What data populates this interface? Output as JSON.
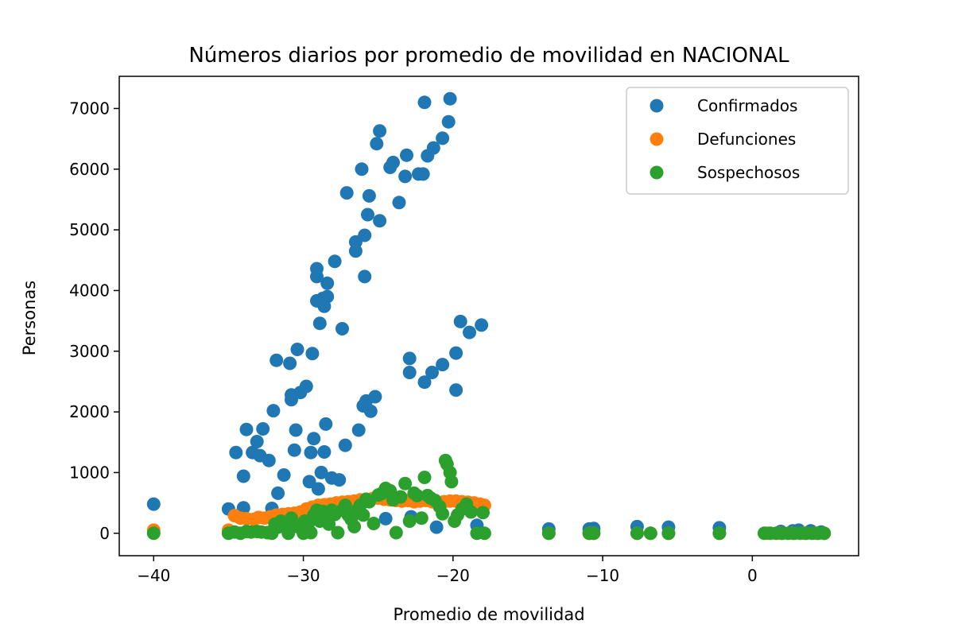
{
  "chart_data": {
    "type": "scatter",
    "title": "Números diarios por promedio de movilidad en NACIONAL",
    "xlabel": "Promedio de movilidad",
    "ylabel": "Personas",
    "xlim": [
      -42.3,
      7.1
    ],
    "ylim": [
      -370,
      7530
    ],
    "x_ticks": [
      -40,
      -30,
      -20,
      -10,
      0
    ],
    "x_tick_labels": [
      "−40",
      "−30",
      "−20",
      "−10",
      "0"
    ],
    "y_ticks": [
      0,
      1000,
      2000,
      3000,
      4000,
      5000,
      6000,
      7000
    ],
    "y_tick_labels": [
      "0",
      "1000",
      "2000",
      "3000",
      "4000",
      "5000",
      "6000",
      "7000"
    ],
    "grid": false,
    "legend_position": "top-right",
    "series": [
      {
        "name": "Confirmados",
        "color": "#1f77b4",
        "points": [
          [
            -40,
            480
          ],
          [
            -35,
            400
          ],
          [
            -34.5,
            1330
          ],
          [
            -34,
            940
          ],
          [
            -34,
            420
          ],
          [
            -33.8,
            1710
          ],
          [
            -33.4,
            1330
          ],
          [
            -33.1,
            1510
          ],
          [
            -32.9,
            1280
          ],
          [
            -32.7,
            1720
          ],
          [
            -32.3,
            1200
          ],
          [
            -32.1,
            410
          ],
          [
            -32,
            2020
          ],
          [
            -31.8,
            2850
          ],
          [
            -31.7,
            660
          ],
          [
            -31.3,
            960
          ],
          [
            -30.9,
            2800
          ],
          [
            -30.8,
            2200
          ],
          [
            -30.8,
            2280
          ],
          [
            -30.6,
            1370
          ],
          [
            -30.5,
            1700
          ],
          [
            -30.4,
            3030
          ],
          [
            -30.2,
            2320
          ],
          [
            -29.8,
            2420
          ],
          [
            -29.6,
            850
          ],
          [
            -29.5,
            1330
          ],
          [
            -29.4,
            2960
          ],
          [
            -29.3,
            1560
          ],
          [
            -29.1,
            3830
          ],
          [
            -29.1,
            4360
          ],
          [
            -29.1,
            4230
          ],
          [
            -29,
            730
          ],
          [
            -28.9,
            3460
          ],
          [
            -28.8,
            1000
          ],
          [
            -28.7,
            3870
          ],
          [
            -28.6,
            1340
          ],
          [
            -28.6,
            3740
          ],
          [
            -28.5,
            1800
          ],
          [
            -28.4,
            3900
          ],
          [
            -28.4,
            4120
          ],
          [
            -28.1,
            910
          ],
          [
            -27.9,
            4480
          ],
          [
            -27.6,
            880
          ],
          [
            -27.4,
            3370
          ],
          [
            -27.2,
            1450
          ],
          [
            -27.1,
            5610
          ],
          [
            -26.5,
            4800
          ],
          [
            -26.5,
            4650
          ],
          [
            -26.3,
            1700
          ],
          [
            -26.1,
            6000
          ],
          [
            -26,
            2100
          ],
          [
            -25.9,
            4910
          ],
          [
            -25.9,
            4230
          ],
          [
            -25.8,
            2180
          ],
          [
            -25.7,
            5250
          ],
          [
            -25.6,
            5560
          ],
          [
            -25.5,
            2010
          ],
          [
            -25.2,
            2250
          ],
          [
            -25.1,
            6420
          ],
          [
            -24.9,
            6630
          ],
          [
            -24.9,
            5150
          ],
          [
            -24.5,
            240
          ],
          [
            -24.2,
            6030
          ],
          [
            -24,
            6110
          ],
          [
            -23.6,
            5450
          ],
          [
            -23.2,
            5880
          ],
          [
            -23.1,
            6230
          ],
          [
            -22.9,
            2880
          ],
          [
            -22.9,
            2650
          ],
          [
            -22.8,
            270
          ],
          [
            -22.3,
            5920
          ],
          [
            -22,
            5920
          ],
          [
            -21.9,
            2490
          ],
          [
            -21.9,
            7100
          ],
          [
            -21.7,
            6220
          ],
          [
            -21.4,
            2650
          ],
          [
            -21.3,
            6350
          ],
          [
            -21.1,
            100
          ],
          [
            -20.7,
            6510
          ],
          [
            -20.7,
            2780
          ],
          [
            -20.3,
            6780
          ],
          [
            -20.2,
            7160
          ],
          [
            -19.8,
            2360
          ],
          [
            -19.8,
            2970
          ],
          [
            -19.5,
            3490
          ],
          [
            -18.9,
            3310
          ],
          [
            -18.4,
            130
          ],
          [
            -18.1,
            3430
          ],
          [
            -13.6,
            70
          ],
          [
            -10.9,
            70
          ],
          [
            -10.6,
            80
          ],
          [
            -7.7,
            110
          ],
          [
            -5.6,
            100
          ],
          [
            -2.2,
            90
          ],
          [
            1.9,
            30
          ],
          [
            2.7,
            40
          ],
          [
            3.1,
            50
          ],
          [
            3.9,
            40
          ],
          [
            4.6,
            20
          ]
        ]
      },
      {
        "name": "Defunciones",
        "color": "#ff7f0e",
        "points": [
          [
            -40,
            50
          ],
          [
            -35,
            50
          ],
          [
            -34.6,
            290
          ],
          [
            -34.2,
            250
          ],
          [
            -33.8,
            240
          ],
          [
            -33.3,
            230
          ],
          [
            -33,
            260
          ],
          [
            -32.6,
            250
          ],
          [
            -32.2,
            270
          ],
          [
            -31.8,
            300
          ],
          [
            -31.4,
            310
          ],
          [
            -31,
            320
          ],
          [
            -30.6,
            330
          ],
          [
            -30.2,
            350
          ],
          [
            -29.8,
            400
          ],
          [
            -29.4,
            430
          ],
          [
            -29,
            460
          ],
          [
            -28.6,
            470
          ],
          [
            -28.2,
            480
          ],
          [
            -27.8,
            500
          ],
          [
            -27.4,
            510
          ],
          [
            -27,
            520
          ],
          [
            -26.6,
            530
          ],
          [
            -26.2,
            550
          ],
          [
            -25.8,
            560
          ],
          [
            -25.4,
            570
          ],
          [
            -25,
            580
          ],
          [
            -24.6,
            560
          ],
          [
            -24.2,
            550
          ],
          [
            -23.8,
            540
          ],
          [
            -23.4,
            530
          ],
          [
            -23,
            540
          ],
          [
            -22.6,
            520
          ],
          [
            -22.2,
            530
          ],
          [
            -21.8,
            540
          ],
          [
            -21.4,
            520
          ],
          [
            -21,
            510
          ],
          [
            -20.6,
            520
          ],
          [
            -20.2,
            530
          ],
          [
            -19.8,
            530
          ],
          [
            -19.4,
            520
          ],
          [
            -19,
            510
          ],
          [
            -18.6,
            500
          ],
          [
            -18.2,
            480
          ],
          [
            -17.9,
            460
          ],
          [
            -13.6,
            0
          ],
          [
            -10.9,
            0
          ],
          [
            -10.6,
            0
          ],
          [
            -7.7,
            0
          ],
          [
            -6.8,
            0
          ],
          [
            -5.6,
            0
          ],
          [
            -2.2,
            0
          ],
          [
            1,
            0
          ],
          [
            1.9,
            0
          ],
          [
            2.7,
            0
          ],
          [
            3.5,
            0
          ],
          [
            4.3,
            0
          ],
          [
            4.8,
            0
          ]
        ]
      },
      {
        "name": "Sospechosos",
        "color": "#2ca02c",
        "points": [
          [
            -40,
            0
          ],
          [
            -35,
            0
          ],
          [
            -34.6,
            20
          ],
          [
            -34.2,
            0
          ],
          [
            -33.8,
            30
          ],
          [
            -33.5,
            20
          ],
          [
            -33.1,
            30
          ],
          [
            -32.8,
            20
          ],
          [
            -32.4,
            10
          ],
          [
            -32.1,
            0
          ],
          [
            -31.9,
            150
          ],
          [
            -31.7,
            100
          ],
          [
            -31.5,
            200
          ],
          [
            -31.2,
            120
          ],
          [
            -31,
            0
          ],
          [
            -30.8,
            250
          ],
          [
            -30.6,
            150
          ],
          [
            -30.3,
            100
          ],
          [
            -30,
            0
          ],
          [
            -29.9,
            200
          ],
          [
            -29.7,
            130
          ],
          [
            -29.5,
            10
          ],
          [
            -29.3,
            300
          ],
          [
            -29.1,
            380
          ],
          [
            -28.9,
            200
          ],
          [
            -28.7,
            360
          ],
          [
            -28.5,
            260
          ],
          [
            -28.3,
            150
          ],
          [
            -28.1,
            380
          ],
          [
            -27.9,
            310
          ],
          [
            -27.7,
            10
          ],
          [
            -27.4,
            380
          ],
          [
            -27.2,
            460
          ],
          [
            -27,
            300
          ],
          [
            -26.8,
            230
          ],
          [
            -26.6,
            110
          ],
          [
            -26.4,
            380
          ],
          [
            -26.2,
            460
          ],
          [
            -26,
            300
          ],
          [
            -25.8,
            560
          ],
          [
            -25.6,
            520
          ],
          [
            -25.3,
            160
          ],
          [
            -25,
            630
          ],
          [
            -24.8,
            650
          ],
          [
            -24.5,
            740
          ],
          [
            -24.2,
            700
          ],
          [
            -24,
            550
          ],
          [
            -23.8,
            10
          ],
          [
            -23.5,
            600
          ],
          [
            -23.2,
            820
          ],
          [
            -22.9,
            200
          ],
          [
            -22.6,
            660
          ],
          [
            -22.4,
            620
          ],
          [
            -22.1,
            250
          ],
          [
            -21.9,
            920
          ],
          [
            -21.7,
            620
          ],
          [
            -21.5,
            580
          ],
          [
            -21.2,
            540
          ],
          [
            -20.9,
            440
          ],
          [
            -20.7,
            320
          ],
          [
            -20.5,
            1200
          ],
          [
            -20.4,
            1140
          ],
          [
            -20.2,
            1000
          ],
          [
            -20.1,
            850
          ],
          [
            -19.9,
            200
          ],
          [
            -19.7,
            300
          ],
          [
            -19.4,
            400
          ],
          [
            -19.1,
            480
          ],
          [
            -18.8,
            350
          ],
          [
            -18.4,
            0
          ],
          [
            -18,
            340
          ],
          [
            -17.9,
            0
          ],
          [
            -13.6,
            0
          ],
          [
            -10.9,
            0
          ],
          [
            -10.6,
            0
          ],
          [
            -7.7,
            0
          ],
          [
            -6.8,
            0
          ],
          [
            -5.6,
            0
          ],
          [
            -2.2,
            0
          ],
          [
            0.8,
            0
          ],
          [
            1.2,
            0
          ],
          [
            1.6,
            0
          ],
          [
            2,
            0
          ],
          [
            2.4,
            0
          ],
          [
            2.8,
            0
          ],
          [
            3.2,
            0
          ],
          [
            3.6,
            0
          ],
          [
            4,
            0
          ],
          [
            4.4,
            0
          ],
          [
            4.8,
            0
          ]
        ]
      }
    ]
  }
}
